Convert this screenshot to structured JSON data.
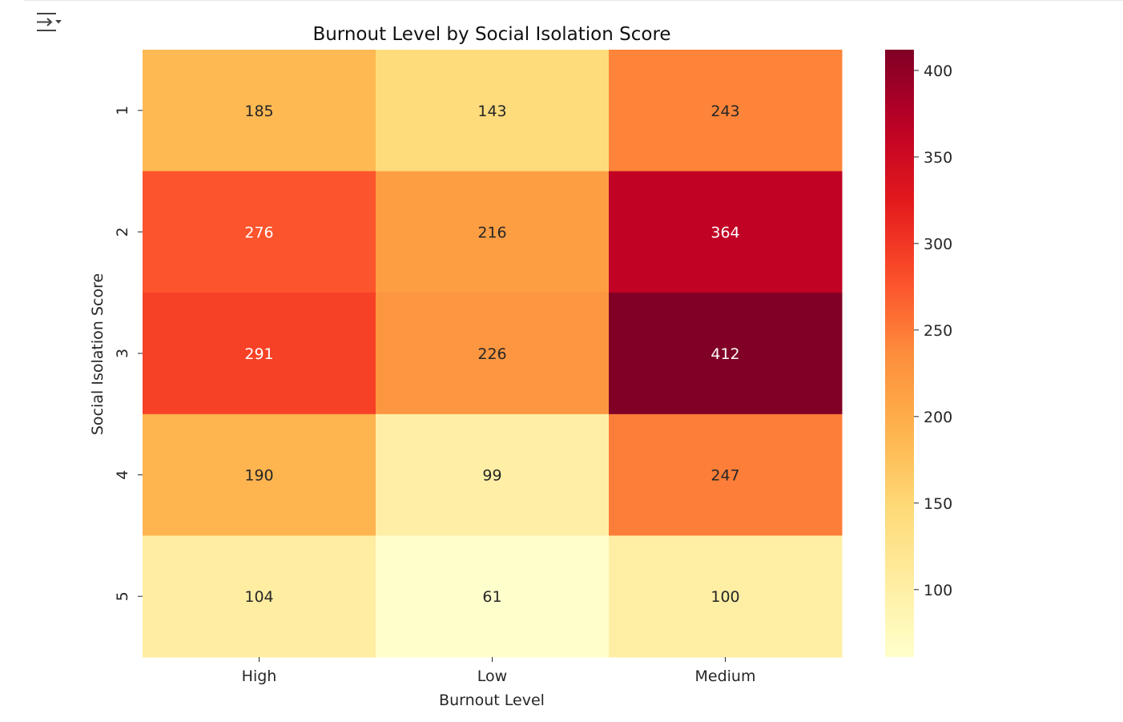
{
  "toolbar": {
    "icon": "output-toggle-icon"
  },
  "chart_data": {
    "type": "heatmap",
    "title": "Burnout Level by Social Isolation Score",
    "xlabel": "Burnout Level",
    "ylabel": "Social Isolation Score",
    "x_categories": [
      "High",
      "Low",
      "Medium"
    ],
    "y_categories": [
      "1",
      "2",
      "3",
      "4",
      "5"
    ],
    "values": [
      [
        185,
        143,
        243
      ],
      [
        276,
        216,
        364
      ],
      [
        291,
        226,
        412
      ],
      [
        190,
        99,
        247
      ],
      [
        104,
        61,
        100
      ]
    ],
    "colormap": "YlOrRd",
    "colorbar": {
      "range": [
        61,
        412
      ],
      "ticks": [
        100,
        150,
        200,
        250,
        300,
        350,
        400
      ]
    }
  }
}
